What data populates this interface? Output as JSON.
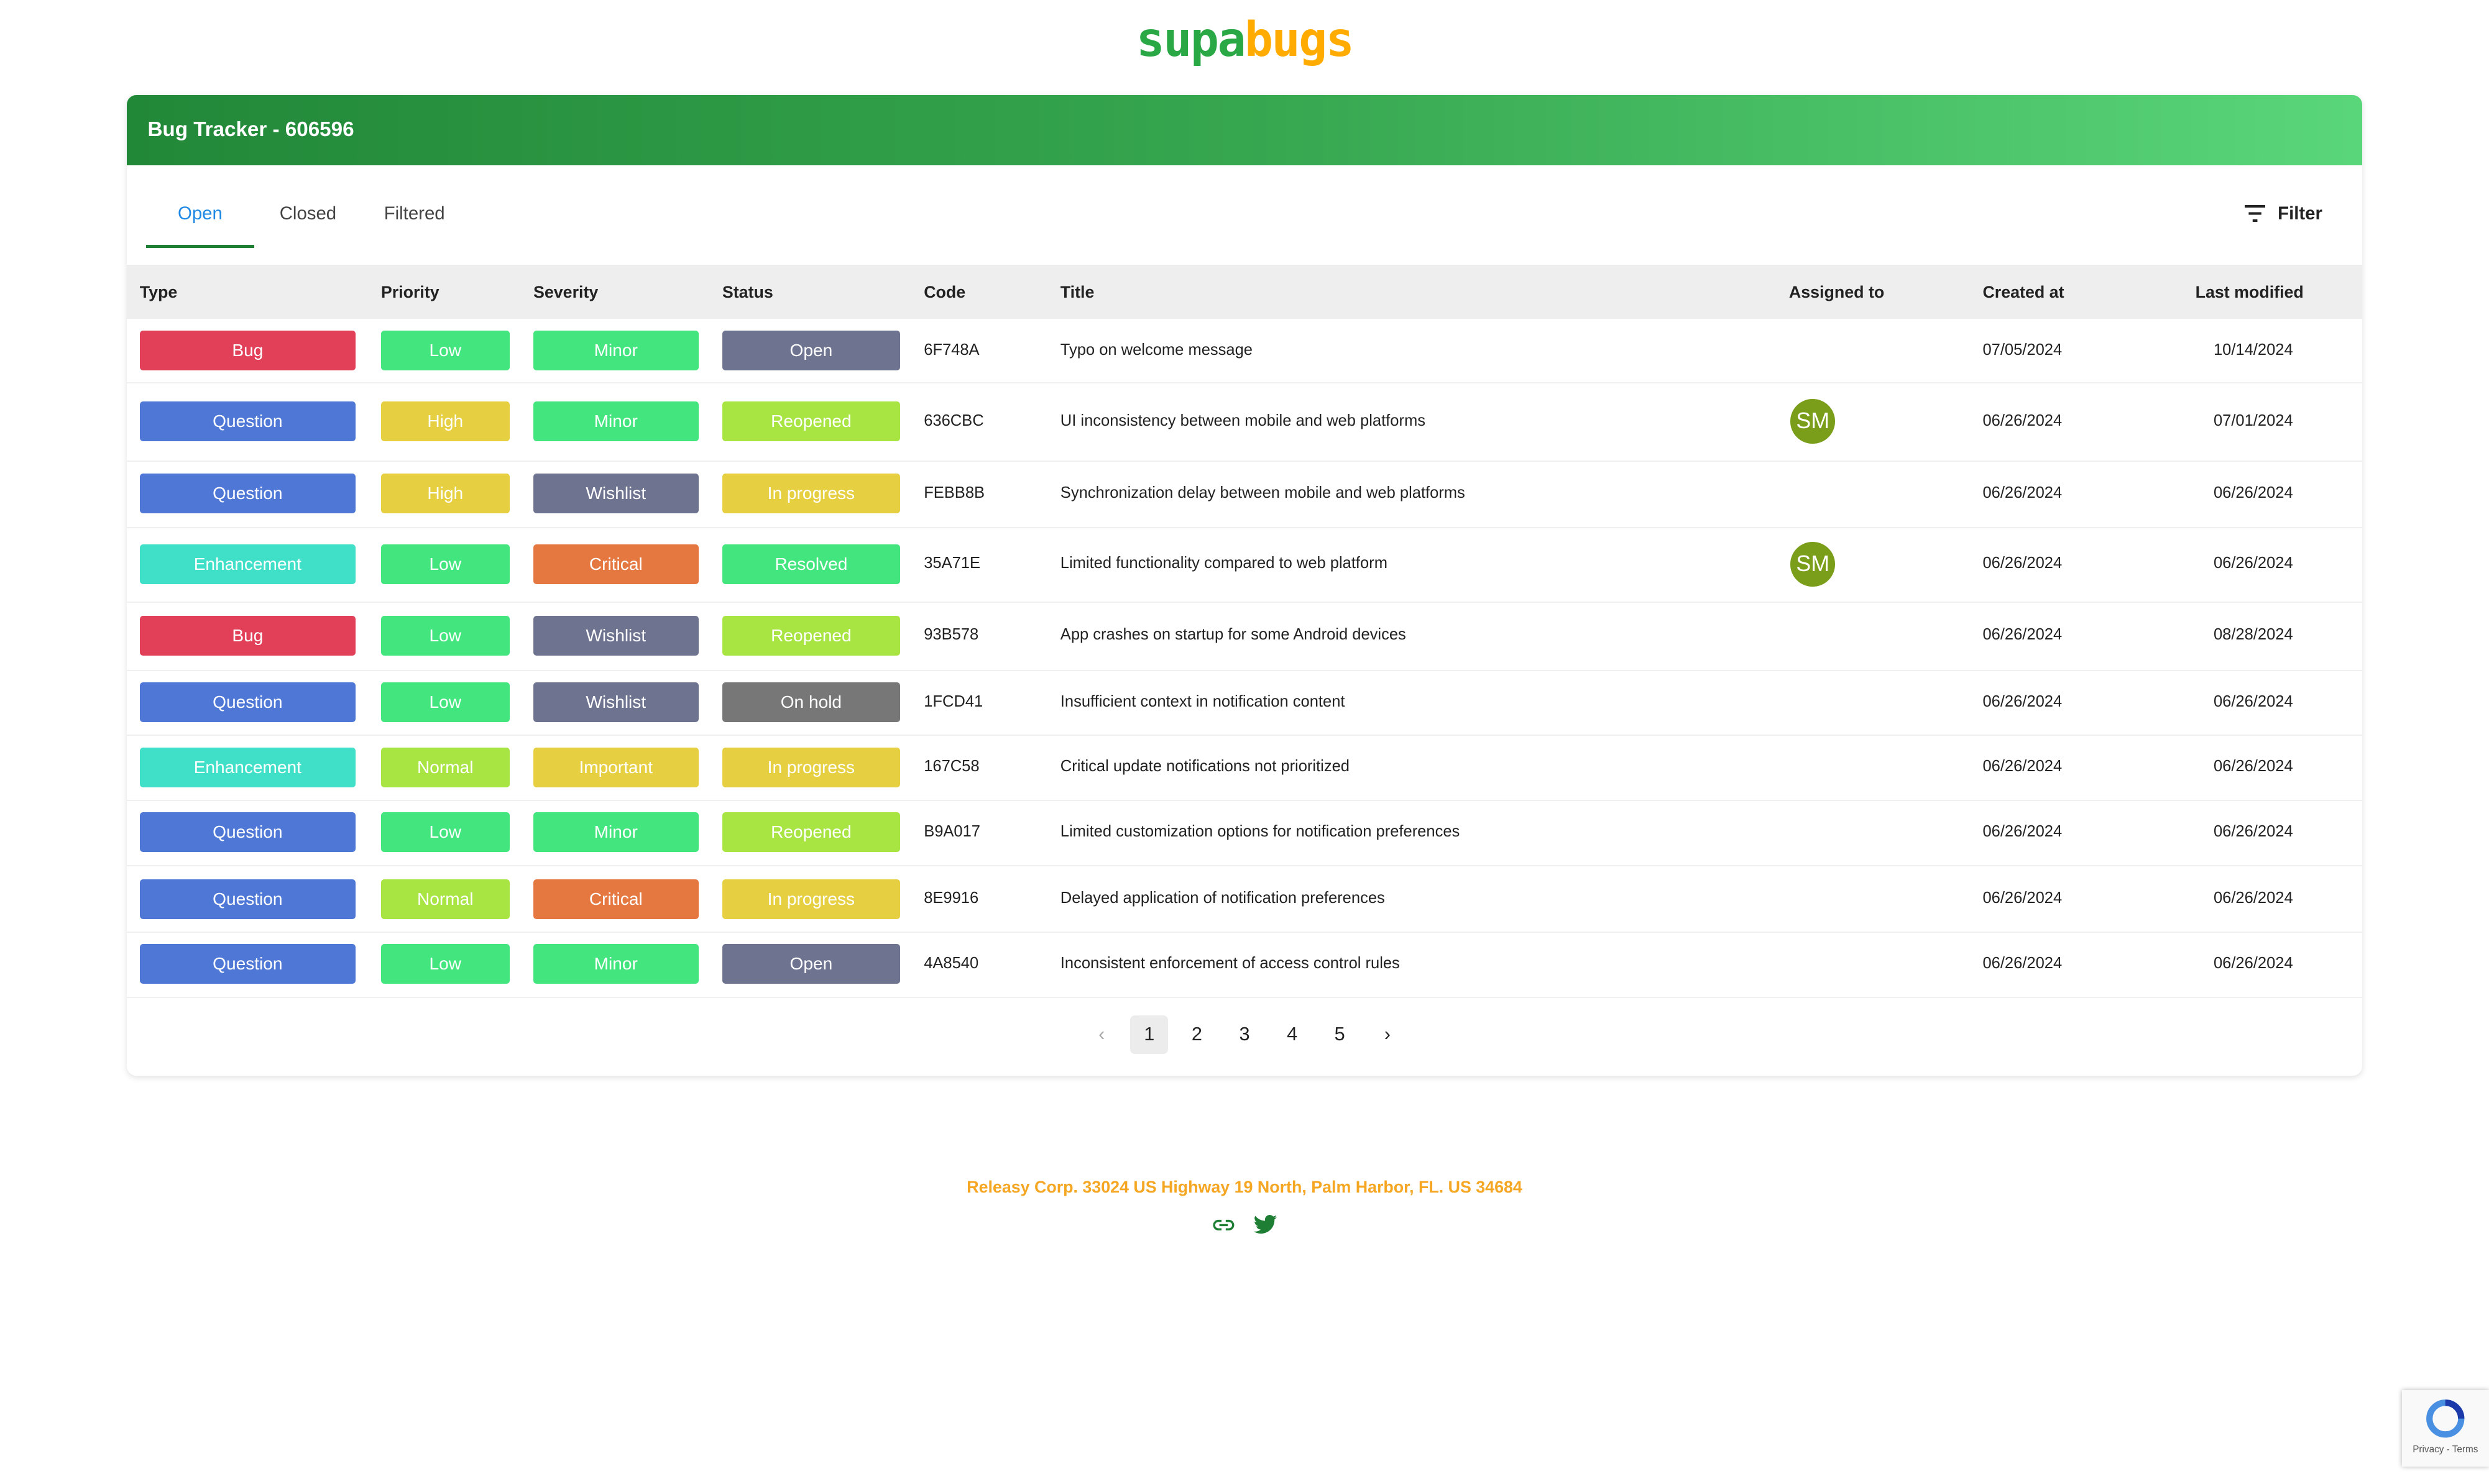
{
  "logo": {
    "part1": "supa",
    "part2": "bugs"
  },
  "header": {
    "title": "Bug Tracker - 606596"
  },
  "tabs": [
    {
      "label": "Open",
      "active": true
    },
    {
      "label": "Closed"
    },
    {
      "label": "Filtered"
    }
  ],
  "filter": {
    "label": "Filter",
    "icon": "filter-icon"
  },
  "columns": [
    "Type",
    "Priority",
    "Severity",
    "Status",
    "Code",
    "Title",
    "Assigned to",
    "Created at",
    "Last modified"
  ],
  "colors": {
    "Bug": "#e24058",
    "Question": "#4f78d6",
    "Enhancement": "#40e0c8",
    "Low": "#42e57e",
    "High": "#e6cf40",
    "Normal": "#a8e442",
    "Minor": "#42e57e",
    "Wishlist": "#6e738f",
    "Critical": "#e57840",
    "Important": "#e6cf40",
    "Open": "#6e738f",
    "Reopened": "#a8e442",
    "In progress": "#e6cf40",
    "Resolved": "#42e57e",
    "On hold": "#777777",
    "avatar": "#7a9e1a"
  },
  "rows": [
    {
      "type": "Bug",
      "priority": "Low",
      "severity": "Minor",
      "status": "Open",
      "code": "6F748A",
      "title": "Typo on welcome message",
      "assigned": "",
      "created": "07/05/2024",
      "modified": "10/14/2024"
    },
    {
      "type": "Question",
      "priority": "High",
      "severity": "Minor",
      "status": "Reopened",
      "code": "636CBC",
      "title": "UI inconsistency between mobile and web platforms",
      "assigned": "SM",
      "created": "06/26/2024",
      "modified": "07/01/2024"
    },
    {
      "type": "Question",
      "priority": "High",
      "severity": "Wishlist",
      "status": "In progress",
      "code": "FEBB8B",
      "title": "Synchronization delay between mobile and web platforms",
      "assigned": "",
      "created": "06/26/2024",
      "modified": "06/26/2024"
    },
    {
      "type": "Enhancement",
      "priority": "Low",
      "severity": "Critical",
      "status": "Resolved",
      "code": "35A71E",
      "title": "Limited functionality compared to web platform",
      "assigned": "SM",
      "created": "06/26/2024",
      "modified": "06/26/2024"
    },
    {
      "type": "Bug",
      "priority": "Low",
      "severity": "Wishlist",
      "status": "Reopened",
      "code": "93B578",
      "title": "App crashes on startup for some Android devices",
      "assigned": "",
      "created": "06/26/2024",
      "modified": "08/28/2024"
    },
    {
      "type": "Question",
      "priority": "Low",
      "severity": "Wishlist",
      "status": "On hold",
      "code": "1FCD41",
      "title": "Insufficient context in notification content",
      "assigned": "",
      "created": "06/26/2024",
      "modified": "06/26/2024"
    },
    {
      "type": "Enhancement",
      "priority": "Normal",
      "severity": "Important",
      "status": "In progress",
      "code": "167C58",
      "title": "Critical update notifications not prioritized",
      "assigned": "",
      "created": "06/26/2024",
      "modified": "06/26/2024"
    },
    {
      "type": "Question",
      "priority": "Low",
      "severity": "Minor",
      "status": "Reopened",
      "code": "B9A017",
      "title": "Limited customization options for notification preferences",
      "assigned": "",
      "created": "06/26/2024",
      "modified": "06/26/2024"
    },
    {
      "type": "Question",
      "priority": "Normal",
      "severity": "Critical",
      "status": "In progress",
      "code": "8E9916",
      "title": "Delayed application of notification preferences",
      "assigned": "",
      "created": "06/26/2024",
      "modified": "06/26/2024"
    },
    {
      "type": "Question",
      "priority": "Low",
      "severity": "Minor",
      "status": "Open",
      "code": "4A8540",
      "title": "Inconsistent enforcement of access control rules",
      "assigned": "",
      "created": "06/26/2024",
      "modified": "06/26/2024"
    }
  ],
  "pagination": {
    "prev": "‹",
    "next": "›",
    "pages": [
      "1",
      "2",
      "3",
      "4",
      "5"
    ],
    "current": "1"
  },
  "footer": {
    "address": "Releasy Corp. 33024 US Highway 19 North, Palm Harbor, FL. US 34684",
    "icons": [
      "link-icon",
      "twitter-icon"
    ]
  },
  "recaptcha": {
    "text": "Privacy - Terms"
  }
}
